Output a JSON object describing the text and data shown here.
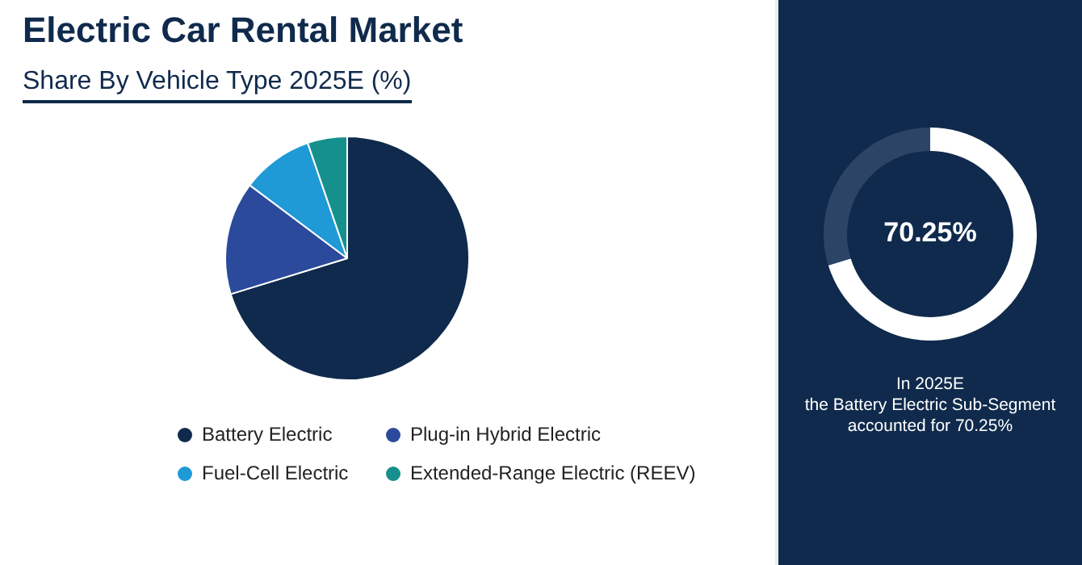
{
  "chart_data": [
    {
      "type": "pie",
      "title": "Electric Car Rental Market",
      "subtitle": "Share By Vehicle Type 2025E (%)",
      "categories": [
        "Battery Electric",
        "Plug-in Hybrid Electric",
        "Fuel-Cell Electric",
        "Extended-Range Electric (REEV)"
      ],
      "values": [
        70.25,
        15,
        9.5,
        5.25
      ],
      "colors": [
        "#0f2a4c",
        "#2b4a9b",
        "#1f9ad6",
        "#16908c"
      ],
      "legend": "bottom"
    },
    {
      "type": "donut",
      "categories": [
        null,
        null
      ],
      "values": [
        70.25,
        29.75
      ],
      "colors": [
        "#ffffff",
        "#2c4566"
      ],
      "value_labels": [
        "70.25%",
        null
      ],
      "annotations": [
        "In 2025E\nthe Battery Electric Sub-Segment\naccounted for 70.25%"
      ]
    }
  ]
}
